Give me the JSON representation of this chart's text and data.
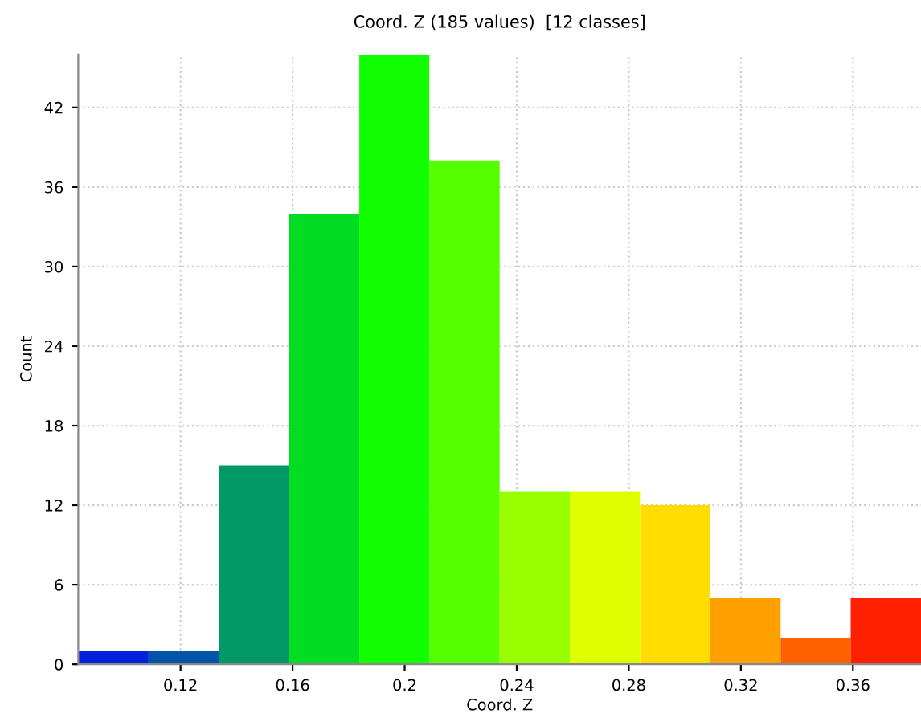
{
  "chart_data": {
    "type": "histogram",
    "title": "Coord. Z (185 values)  [12 classes]",
    "xlabel": "Coord. Z",
    "ylabel": "Count",
    "bins": [
      0.0835,
      0.1086,
      0.1336,
      0.1587,
      0.1838,
      0.2088,
      0.2339,
      0.259,
      0.284,
      0.3091,
      0.3342,
      0.3592,
      0.3843
    ],
    "values": [
      1,
      1,
      15,
      34,
      46,
      38,
      13,
      13,
      12,
      5,
      2,
      5
    ],
    "colors": [
      "#0022dd",
      "#0055aa",
      "#009966",
      "#00dd22",
      "#11ff00",
      "#55ff00",
      "#99ff00",
      "#ddff00",
      "#ffdd00",
      "#ffa000",
      "#ff6000",
      "#ff2000"
    ],
    "xlim": [
      0.0835,
      0.3843
    ],
    "ylim": [
      0,
      46
    ],
    "xticks": [
      0.12,
      0.16,
      0.2,
      0.24,
      0.28,
      0.32,
      0.36
    ],
    "yticks": [
      0,
      6,
      12,
      18,
      24,
      30,
      36,
      42
    ],
    "grid": true,
    "legend": false
  }
}
